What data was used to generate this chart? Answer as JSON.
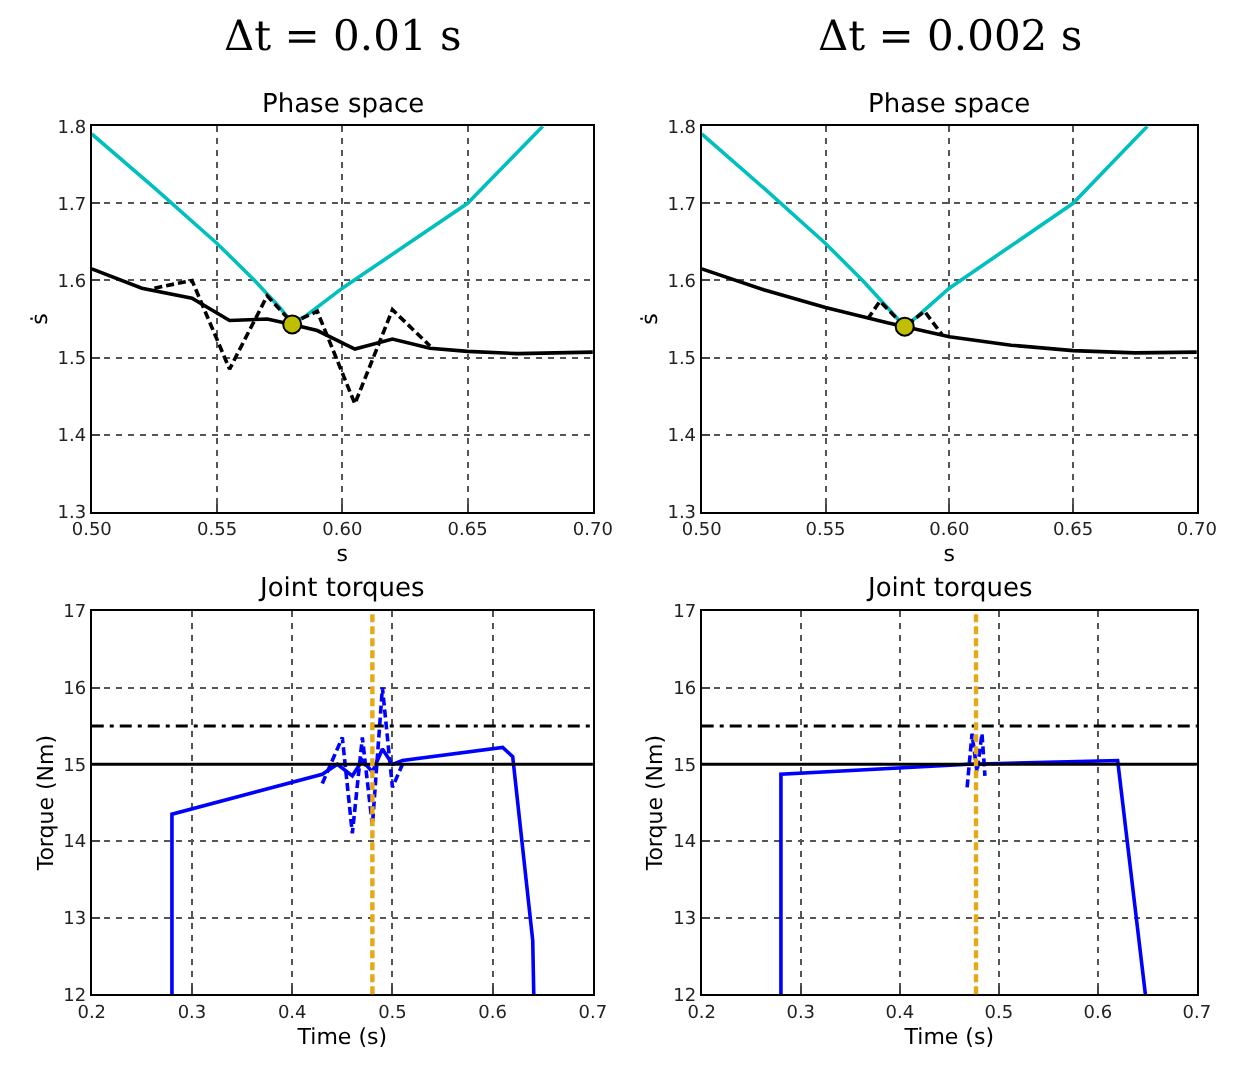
{
  "chart_data": [
    {
      "type": "line",
      "title": "Δt = 0.01 s",
      "subtitle": "Phase space",
      "xlabel": "s",
      "ylabel": "ṡ",
      "xlim": [
        0.5,
        0.7
      ],
      "xticks": [
        {
          "value": 0.5,
          "label": "0.50"
        },
        0.55,
        {
          "value": 0.6,
          "label": "0.60"
        },
        0.65,
        {
          "value": 0.7,
          "label": "0.70"
        }
      ],
      "ylim": [
        1.3,
        1.8
      ],
      "yticks": [
        1.3,
        1.4,
        1.5,
        1.6,
        1.7,
        1.8
      ],
      "grid": true,
      "series": [
        {
          "color": "#00bfbf",
          "line_style": "solid",
          "marker": "none",
          "x": [
            0.5,
            0.525,
            0.55,
            0.565,
            0.575,
            0.58,
            0.585,
            0.6,
            0.625,
            0.65,
            0.665,
            0.68
          ],
          "values": [
            1.79,
            1.72,
            1.648,
            1.6,
            1.565,
            1.545,
            1.553,
            1.59,
            1.645,
            1.7,
            1.75,
            1.8
          ]
        },
        {
          "color": "#000000",
          "line_style": "dashed",
          "marker": "none",
          "x": [
            0.525,
            0.54,
            0.555,
            0.57,
            0.58,
            0.59,
            0.605,
            0.62,
            0.635
          ],
          "values": [
            1.59,
            1.6,
            1.485,
            1.58,
            1.545,
            1.56,
            1.44,
            1.562,
            1.515
          ]
        },
        {
          "color": "#000000",
          "line_style": "solid",
          "marker": "none",
          "x": [
            0.5,
            0.52,
            0.54,
            0.555,
            0.57,
            0.58,
            0.59,
            0.605,
            0.62,
            0.635,
            0.65,
            0.67,
            0.7
          ],
          "values": [
            1.615,
            1.59,
            1.577,
            1.548,
            1.55,
            1.543,
            1.535,
            1.511,
            1.524,
            1.512,
            1.508,
            1.505,
            1.507
          ]
        },
        {
          "type": "scatter",
          "color": "#bfbf00",
          "marker": "circle",
          "x": [
            0.58
          ],
          "values": [
            1.543
          ]
        }
      ]
    },
    {
      "type": "line",
      "title": "Δt = 0.002 s",
      "subtitle": "Phase space",
      "xlabel": "s",
      "ylabel": "ṡ",
      "xlim": [
        0.5,
        0.7
      ],
      "xticks": [
        {
          "value": 0.5,
          "label": "0.50"
        },
        0.55,
        {
          "value": 0.6,
          "label": "0.60"
        },
        0.65,
        {
          "value": 0.7,
          "label": "0.70"
        }
      ],
      "ylim": [
        1.3,
        1.8
      ],
      "yticks": [
        1.3,
        1.4,
        1.5,
        1.6,
        1.7,
        1.8
      ],
      "grid": true,
      "series": [
        {
          "color": "#00bfbf",
          "line_style": "solid",
          "marker": "none",
          "x": [
            0.5,
            0.525,
            0.55,
            0.565,
            0.575,
            0.582,
            0.587,
            0.6,
            0.625,
            0.65,
            0.665,
            0.68
          ],
          "values": [
            1.79,
            1.72,
            1.648,
            1.6,
            1.565,
            1.54,
            1.553,
            1.59,
            1.645,
            1.7,
            1.75,
            1.8
          ]
        },
        {
          "color": "#000000",
          "line_style": "dashed",
          "marker": "none",
          "x": [
            0.567,
            0.572,
            0.582,
            0.59,
            0.597
          ],
          "values": [
            1.55,
            1.573,
            1.54,
            1.56,
            1.53
          ]
        },
        {
          "color": "#000000",
          "line_style": "solid",
          "marker": "none",
          "x": [
            0.5,
            0.525,
            0.55,
            0.575,
            0.6,
            0.625,
            0.65,
            0.675,
            0.7
          ],
          "values": [
            1.615,
            1.588,
            1.565,
            1.545,
            1.527,
            1.516,
            1.509,
            1.506,
            1.507
          ]
        },
        {
          "type": "scatter",
          "color": "#bfbf00",
          "marker": "circle",
          "x": [
            0.582
          ],
          "values": [
            1.54
          ]
        }
      ]
    },
    {
      "type": "line",
      "subtitle": "Joint torques",
      "xlabel": "Time (s)",
      "ylabel": "Torque (Nm)",
      "xlim": [
        0.2,
        0.7
      ],
      "xticks": [
        0.2,
        0.3,
        0.4,
        0.5,
        0.6,
        0.7
      ],
      "ylim": [
        12,
        17
      ],
      "yticks": [
        12,
        13,
        14,
        15,
        16,
        17
      ],
      "grid": true,
      "ref_lines": [
        {
          "axis": "y",
          "value": 15,
          "color": "#000000",
          "line_style": "solid"
        },
        {
          "axis": "y",
          "value": 15.5,
          "color": "#000000",
          "line_style": "dashdot"
        },
        {
          "axis": "x",
          "value": 0.48,
          "color": "#e6a817",
          "line_style": "dashed"
        }
      ],
      "series": [
        {
          "color": "#0000ff",
          "line_style": "dashed",
          "marker": "none",
          "x": [
            0.43,
            0.45,
            0.46,
            0.47,
            0.48,
            0.49,
            0.5,
            0.51
          ],
          "values": [
            14.75,
            15.35,
            14.1,
            15.35,
            14.2,
            16.0,
            14.7,
            15.0
          ]
        },
        {
          "color": "#0000ff",
          "line_style": "solid",
          "marker": "none",
          "x": [
            0.28,
            0.28,
            0.43,
            0.445,
            0.46,
            0.47,
            0.48,
            0.49,
            0.5,
            0.51,
            0.61,
            0.62,
            0.64,
            0.641
          ],
          "values": [
            12,
            14.35,
            14.87,
            15.0,
            14.85,
            15.05,
            14.9,
            15.2,
            15.0,
            15.05,
            15.22,
            15.1,
            12.7,
            12
          ]
        }
      ]
    },
    {
      "type": "line",
      "subtitle": "Joint torques",
      "xlabel": "Time (s)",
      "ylabel": "Torque (Nm)",
      "xlim": [
        0.2,
        0.7
      ],
      "xticks": [
        0.2,
        0.3,
        0.4,
        0.5,
        0.6,
        0.7
      ],
      "ylim": [
        12,
        17
      ],
      "yticks": [
        12,
        13,
        14,
        15,
        16,
        17
      ],
      "grid": true,
      "ref_lines": [
        {
          "axis": "y",
          "value": 15,
          "color": "#000000",
          "line_style": "solid"
        },
        {
          "axis": "y",
          "value": 15.5,
          "color": "#000000",
          "line_style": "dashdot"
        },
        {
          "axis": "x",
          "value": 0.477,
          "color": "#e6a817",
          "line_style": "dashed"
        }
      ],
      "series": [
        {
          "color": "#0000ff",
          "line_style": "dashed",
          "marker": "none",
          "x": [
            0.468,
            0.473,
            0.478,
            0.483,
            0.486
          ],
          "values": [
            14.7,
            15.4,
            14.9,
            15.4,
            14.85
          ]
        },
        {
          "color": "#0000ff",
          "line_style": "solid",
          "marker": "none",
          "x": [
            0.28,
            0.28,
            0.47,
            0.62,
            0.648
          ],
          "values": [
            12,
            14.87,
            15.0,
            15.05,
            12
          ]
        }
      ]
    }
  ]
}
